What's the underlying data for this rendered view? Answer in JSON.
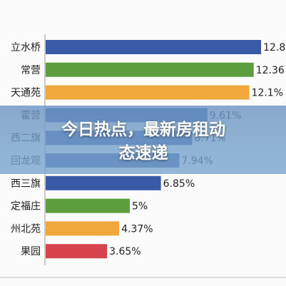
{
  "chart_data": {
    "type": "bar",
    "orientation": "horizontal",
    "title": "今日热点，最新房租动态速递",
    "categories": [
      "立水桥",
      "常营",
      "天通苑",
      "霍营",
      "西二旗",
      "回龙观",
      "西三旗",
      "定福庄",
      "州北苑",
      "果园"
    ],
    "values": [
      12.8,
      12.36,
      12.1,
      9.61,
      8.71,
      7.94,
      6.85,
      5,
      4.37,
      3.65
    ],
    "value_labels": [
      "12.8",
      "12.36",
      "12.1%",
      "9.61%",
      "8.71%",
      "7.94%",
      "6.85%",
      "5%",
      "4.37%",
      "3.65%"
    ],
    "colors": [
      "#3a5aa8",
      "#5c9e3e",
      "#f0a73c",
      "#3a5aa8",
      "#3a5aa8",
      "#3a5aa8",
      "#3a5aa8",
      "#5c9e3e",
      "#f0a73c",
      "#d7434c"
    ]
  }
}
